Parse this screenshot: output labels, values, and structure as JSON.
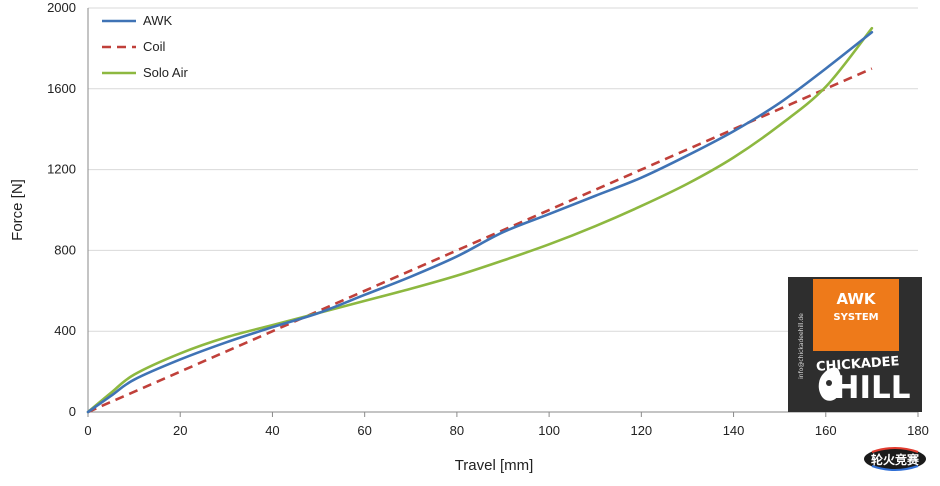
{
  "chart_data": {
    "type": "line",
    "title": "",
    "xlabel": "Travel [mm]",
    "ylabel": "Force [N]",
    "xlim": [
      0,
      180
    ],
    "ylim": [
      0,
      2000
    ],
    "x_ticks": [
      0,
      20,
      40,
      60,
      80,
      100,
      120,
      140,
      160,
      180
    ],
    "y_ticks": [
      0,
      400,
      800,
      1200,
      1600,
      2000
    ],
    "grid": "horizontal",
    "legend_position": "top-left",
    "series": [
      {
        "name": "AWK",
        "color": "#3f73b5",
        "style": "solid",
        "points": [
          [
            0,
            0
          ],
          [
            5,
            80
          ],
          [
            10,
            160
          ],
          [
            20,
            260
          ],
          [
            30,
            345
          ],
          [
            40,
            420
          ],
          [
            50,
            490
          ],
          [
            60,
            580
          ],
          [
            70,
            670
          ],
          [
            80,
            770
          ],
          [
            90,
            890
          ],
          [
            100,
            980
          ],
          [
            110,
            1070
          ],
          [
            120,
            1160
          ],
          [
            130,
            1270
          ],
          [
            140,
            1390
          ],
          [
            150,
            1530
          ],
          [
            160,
            1700
          ],
          [
            170,
            1880
          ]
        ]
      },
      {
        "name": "Coil",
        "color": "#c0403a",
        "style": "dashed",
        "points": [
          [
            0,
            0
          ],
          [
            170,
            1700
          ]
        ]
      },
      {
        "name": "Solo Air",
        "color": "#8db840",
        "style": "solid",
        "points": [
          [
            0,
            0
          ],
          [
            5,
            95
          ],
          [
            10,
            185
          ],
          [
            20,
            290
          ],
          [
            30,
            370
          ],
          [
            40,
            430
          ],
          [
            50,
            490
          ],
          [
            60,
            550
          ],
          [
            70,
            610
          ],
          [
            80,
            675
          ],
          [
            90,
            750
          ],
          [
            100,
            830
          ],
          [
            110,
            920
          ],
          [
            120,
            1020
          ],
          [
            130,
            1130
          ],
          [
            140,
            1260
          ],
          [
            150,
            1420
          ],
          [
            160,
            1610
          ],
          [
            170,
            1900
          ]
        ]
      }
    ]
  },
  "logo": {
    "badge_line1": "AWK",
    "badge_line2": "SYSTEM",
    "brand_line1": "CHICKADEE",
    "brand_line2": "HILL",
    "side_text": "info@chickadeehill.de"
  },
  "watermark": {
    "text": "轮火竞赛"
  }
}
